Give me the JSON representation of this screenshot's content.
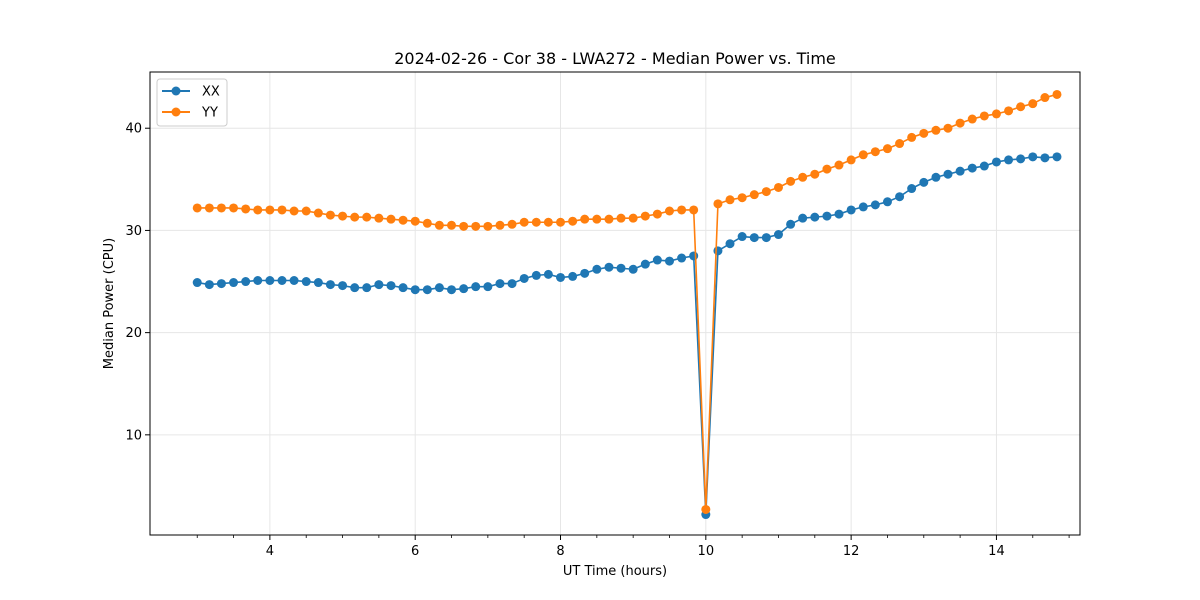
{
  "chart_data": {
    "type": "line",
    "title": "2024-02-26 - Cor 38 - LWA272 - Median Power vs. Time",
    "xlabel": "UT Time (hours)",
    "ylabel": "Median Power (CPU)",
    "xlim": [
      2.35,
      15.15
    ],
    "ylim": [
      0.2,
      45.5
    ],
    "xticks": [
      4,
      6,
      8,
      10,
      12,
      14
    ],
    "xtick_labels": [
      "4",
      "6",
      "8",
      "10",
      "12",
      "14"
    ],
    "yticks": [
      10,
      20,
      30,
      40
    ],
    "ytick_labels": [
      "10",
      "20",
      "30",
      "40"
    ],
    "grid": true,
    "legend": "top-left",
    "x": [
      3.0,
      3.167,
      3.333,
      3.5,
      3.667,
      3.833,
      4.0,
      4.167,
      4.333,
      4.5,
      4.667,
      4.833,
      5.0,
      5.167,
      5.333,
      5.5,
      5.667,
      5.833,
      6.0,
      6.167,
      6.333,
      6.5,
      6.667,
      6.833,
      7.0,
      7.167,
      7.333,
      7.5,
      7.667,
      7.833,
      8.0,
      8.167,
      8.333,
      8.5,
      8.667,
      8.833,
      9.0,
      9.167,
      9.333,
      9.5,
      9.667,
      9.833,
      10.0,
      10.167,
      10.333,
      10.5,
      10.667,
      10.833,
      11.0,
      11.167,
      11.333,
      11.5,
      11.667,
      11.833,
      12.0,
      12.167,
      12.333,
      12.5,
      12.667,
      12.833,
      13.0,
      13.167,
      13.333,
      13.5,
      13.667,
      13.833,
      14.0,
      14.167,
      14.333,
      14.5,
      14.667,
      14.833
    ],
    "series": [
      {
        "name": "XX",
        "color": "#1f77b4",
        "values": [
          24.9,
          24.7,
          24.8,
          24.9,
          25.0,
          25.1,
          25.1,
          25.1,
          25.1,
          25.0,
          24.9,
          24.7,
          24.6,
          24.4,
          24.4,
          24.7,
          24.6,
          24.4,
          24.2,
          24.2,
          24.4,
          24.2,
          24.3,
          24.5,
          24.5,
          24.8,
          24.8,
          25.3,
          25.6,
          25.7,
          25.4,
          25.5,
          25.8,
          26.2,
          26.4,
          26.3,
          26.2,
          26.7,
          27.1,
          27.0,
          27.3,
          27.5,
          2.2,
          28.0,
          28.7,
          29.4,
          29.3,
          29.3,
          29.6,
          30.6,
          31.2,
          31.3,
          31.4,
          31.6,
          32.0,
          32.3,
          32.5,
          32.8,
          33.3,
          34.1,
          34.7,
          35.2,
          35.5,
          35.8,
          36.1,
          36.3,
          36.7,
          36.9,
          37.0,
          37.2,
          37.1,
          37.2
        ]
      },
      {
        "name": "YY",
        "color": "#ff7f0e",
        "values": [
          32.2,
          32.2,
          32.2,
          32.2,
          32.1,
          32.0,
          32.0,
          32.0,
          31.9,
          31.9,
          31.7,
          31.5,
          31.4,
          31.3,
          31.3,
          31.2,
          31.1,
          31.0,
          30.9,
          30.7,
          30.5,
          30.5,
          30.4,
          30.4,
          30.4,
          30.5,
          30.6,
          30.8,
          30.8,
          30.8,
          30.8,
          30.9,
          31.1,
          31.1,
          31.1,
          31.2,
          31.2,
          31.4,
          31.6,
          31.9,
          32.0,
          32.0,
          2.7,
          32.6,
          33.0,
          33.2,
          33.5,
          33.8,
          34.2,
          34.8,
          35.2,
          35.5,
          36.0,
          36.4,
          36.9,
          37.4,
          37.7,
          38.0,
          38.5,
          39.1,
          39.5,
          39.8,
          40.0,
          40.5,
          40.9,
          41.2,
          41.4,
          41.7,
          42.1,
          42.4,
          43.0,
          43.3
        ]
      }
    ]
  }
}
